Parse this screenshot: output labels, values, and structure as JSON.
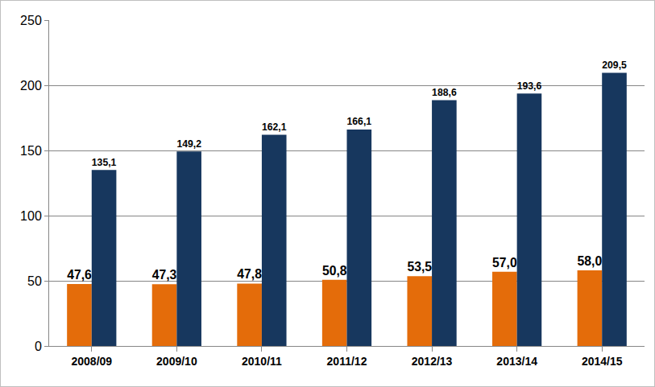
{
  "chart_data": {
    "type": "bar",
    "categories": [
      "2008/09",
      "2009/10",
      "2010/11",
      "2011/12",
      "2012/13",
      "2013/14",
      "2014/15"
    ],
    "series": [
      {
        "color": "#e46c0a",
        "values": [
          47.6,
          47.3,
          47.8,
          50.8,
          53.5,
          57.0,
          58.0
        ],
        "value_labels": [
          "47,6",
          "47,3",
          "47,8",
          "50,8",
          "53,5",
          "57,0",
          "58,0"
        ]
      },
      {
        "color": "#17375e",
        "values": [
          135.1,
          149.2,
          162.1,
          166.1,
          188.6,
          193.6,
          209.5
        ],
        "value_labels": [
          "135,1",
          "149,2",
          "162,1",
          "166,1",
          "188,6",
          "193,6",
          "209,5"
        ]
      }
    ],
    "ylim": [
      0,
      250
    ],
    "yticks": [
      0,
      50,
      100,
      150,
      200,
      250
    ],
    "grid": true,
    "data_labels": true
  }
}
